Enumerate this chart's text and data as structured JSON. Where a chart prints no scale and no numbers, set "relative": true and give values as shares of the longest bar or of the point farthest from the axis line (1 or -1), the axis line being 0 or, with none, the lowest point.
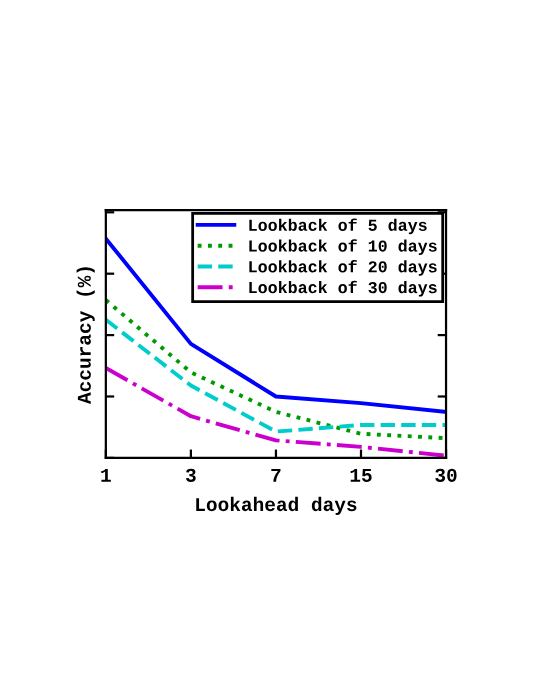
{
  "chart_data": {
    "type": "line",
    "relative": true,
    "xlabel": "Lookahead days",
    "ylabel": "Accuracy (%)",
    "categories": [
      "1",
      "3",
      "7",
      "15",
      "30"
    ],
    "tick_labels": "x",
    "legend": "top right",
    "grid": false,
    "series": [
      {
        "name": "Lookback of 5 days",
        "color": "#0000ff",
        "line_style": "solid",
        "values": [
          1,
          0.52,
          0.28,
          0.25,
          0.21
        ]
      },
      {
        "name": "Lookback of 10 days",
        "color": "#009900",
        "line_style": "dotted",
        "values": [
          0.72,
          0.39,
          0.21,
          0.11,
          0.09
        ]
      },
      {
        "name": "Lookback of 20 days",
        "color": "#00cccc",
        "line_style": "dashed",
        "values": [
          0.63,
          0.33,
          0.12,
          0.15,
          0.15
        ]
      },
      {
        "name": "Lookback of 30 days",
        "color": "#cc00cc",
        "line_style": "dashdot",
        "values": [
          0.41,
          0.19,
          0.08,
          0.05,
          0.01
        ]
      }
    ]
  }
}
